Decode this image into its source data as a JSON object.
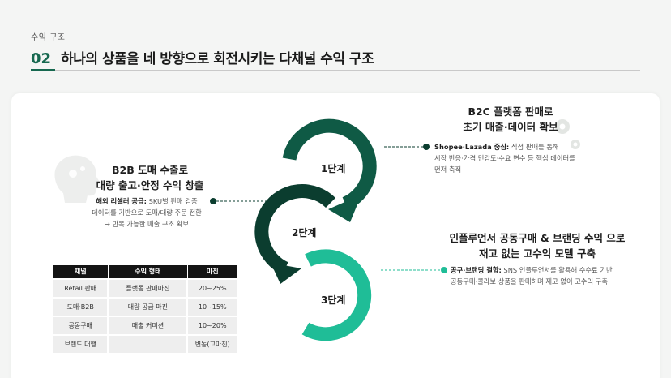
{
  "header": {
    "section_label": "수익 구조",
    "number": "02",
    "title": "하나의 상품을 네 방향으로 회전시키는 다채널 수익 구조"
  },
  "b2c": {
    "title_line1": "B2C 플랫폼 판매로",
    "title_line2": "초기 매출·데이터 확보",
    "desc_bold": "Shopee·Lazada 중심:",
    "desc_rest": " 직접 판매를 통해",
    "desc_line2": "시장 반응·가격 민감도·수요 변수 등 핵심 데이터를",
    "desc_line3": "먼저 축적"
  },
  "b2b": {
    "title_line1": "B2B 도매 수출로",
    "title_line2": "대량 출고·안정 수익 창출",
    "desc_bold": "해외 리셀러 공급:",
    "desc_rest": " SKU별 판매 검증",
    "desc_line2": "데이터를 기반으로 도매/대량 주문 전환",
    "desc_line3": "→ 반복 가능한 매출 구조 확보"
  },
  "influencer": {
    "title_line1": "인플루언서 공동구매 & 브랜딩 수익 으로",
    "title_line2": "재고 없는 고수익 모델 구축",
    "desc_bold": "공구·브랜딩 결합:",
    "desc_rest": " SNS 인플루언서를 활용해 수수료 기반",
    "desc_line2": "공동구매·콜라보 상품을 판매하며 재고 없이 고수익 구축"
  },
  "stages": [
    "1단계",
    "2단계",
    "3단계"
  ],
  "table": {
    "headers": [
      "채널",
      "수익 형태",
      "마진"
    ],
    "rows": [
      [
        "Retail 판매",
        "플랫폼 판매마진",
        "20~25%"
      ],
      [
        "도매·B2B",
        "대량 공급 마진",
        "10~15%"
      ],
      [
        "공동구매",
        "매출 커미션",
        "10~20%"
      ],
      [
        "브랜드 대행",
        "",
        "변동(고마진)"
      ]
    ]
  },
  "colors": {
    "stage1": "#0f5a45",
    "stage2": "#0b3d2f",
    "stage3": "#1fbd97",
    "accent": "#16684f"
  },
  "icons": [
    "head-gears-icon",
    "gears-icon"
  ]
}
